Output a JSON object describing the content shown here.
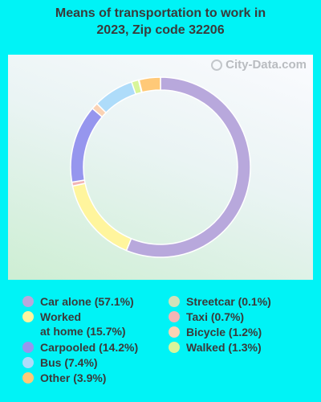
{
  "title": "Means of transportation to work in\n2023, Zip code 32206",
  "watermark": "City-Data.com",
  "chart_data": {
    "type": "pie",
    "subtype": "donut",
    "categories": [
      "Car alone",
      "Worked at home",
      "Carpooled",
      "Bus",
      "Other",
      "Streetcar",
      "Taxi",
      "Bicycle",
      "Walked"
    ],
    "values": [
      57.1,
      15.7,
      14.2,
      7.4,
      3.9,
      0.1,
      0.7,
      1.2,
      1.3
    ],
    "unit": "%",
    "legend_placement": "bottom",
    "slice_order": [
      "Car alone",
      "Worked at home",
      "Taxi",
      "Carpooled",
      "Bicycle",
      "Bus",
      "Walked",
      "Streetcar",
      "Other"
    ],
    "colors": {
      "Car alone": "#b8a8dc",
      "Worked at home": "#fff59d",
      "Carpooled": "#9696ee",
      "Bus": "#aedcfa",
      "Other": "#ffc978",
      "Streetcar": "#cfe2b9",
      "Taxi": "#f2b5b5",
      "Bicycle": "#fad2b4",
      "Walked": "#d8f59a"
    }
  },
  "legend": {
    "left": [
      {
        "label": "Car alone (57.1%)",
        "key": "Car alone"
      },
      {
        "label": "Worked\nat home (15.7%)",
        "key": "Worked at home"
      },
      {
        "label": "Carpooled (14.2%)",
        "key": "Carpooled"
      },
      {
        "label": "Bus (7.4%)",
        "key": "Bus"
      },
      {
        "label": "Other (3.9%)",
        "key": "Other"
      }
    ],
    "right": [
      {
        "label": "Streetcar (0.1%)",
        "key": "Streetcar"
      },
      {
        "label": "Taxi (0.7%)",
        "key": "Taxi"
      },
      {
        "label": "Bicycle (1.2%)",
        "key": "Bicycle"
      },
      {
        "label": "Walked (1.3%)",
        "key": "Walked"
      }
    ]
  }
}
